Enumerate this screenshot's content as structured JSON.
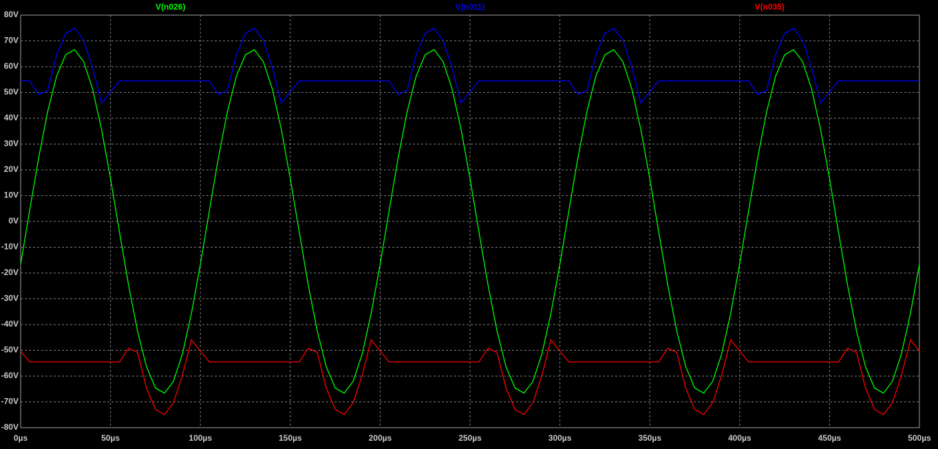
{
  "chart_data": {
    "type": "line",
    "x": [
      0,
      5,
      10,
      15,
      20,
      25,
      30,
      35,
      40,
      45,
      50,
      55,
      60,
      65,
      70,
      75,
      80,
      85,
      90,
      95,
      100,
      105,
      110,
      115,
      120,
      125,
      130,
      135,
      140,
      145,
      150,
      155,
      160,
      165,
      170,
      175,
      180,
      185,
      190,
      195,
      200,
      205,
      210,
      215,
      220,
      225,
      230,
      235,
      240,
      245,
      250,
      255,
      260,
      265,
      270,
      275,
      280,
      285,
      290,
      295,
      300,
      305,
      310,
      315,
      320,
      325,
      330,
      335,
      340,
      345,
      350,
      355,
      360,
      365,
      370,
      375,
      380,
      385,
      390,
      395,
      400,
      405,
      410,
      415,
      420,
      425,
      430,
      435,
      440,
      445,
      450,
      455,
      460,
      465,
      470,
      475,
      480,
      485,
      490,
      495,
      500
    ],
    "series": [
      {
        "name": "V(n026)",
        "color": "#00ff00",
        "values": [
          -16.6,
          4.2,
          24.6,
          42.5,
          56.3,
          64.6,
          66.6,
          62.0,
          51.4,
          35.7,
          16.6,
          -4.2,
          -24.6,
          -42.5,
          -56.3,
          -64.6,
          -66.6,
          -62.0,
          -51.4,
          -35.7,
          -16.6,
          4.2,
          24.6,
          42.5,
          56.3,
          64.6,
          66.6,
          62.0,
          51.4,
          35.7,
          16.6,
          -4.2,
          -24.6,
          -42.5,
          -56.3,
          -64.6,
          -66.6,
          -62.0,
          -51.4,
          -35.7,
          -16.6,
          4.2,
          24.6,
          42.5,
          56.3,
          64.6,
          66.6,
          62.0,
          51.4,
          35.7,
          16.6,
          -4.2,
          -24.6,
          -42.5,
          -56.3,
          -64.6,
          -66.6,
          -62.0,
          -51.4,
          -35.7,
          -16.6,
          4.2,
          24.6,
          42.5,
          56.3,
          64.6,
          66.6,
          62.0,
          51.4,
          35.7,
          16.6,
          -4.2,
          -24.6,
          -42.5,
          -56.3,
          -64.6,
          -66.6,
          -62.0,
          -51.4,
          -35.7,
          -16.6,
          4.2,
          24.6,
          42.5,
          56.3,
          64.6,
          66.6,
          62.0,
          51.4,
          35.7,
          16.6,
          -4.2,
          -24.6,
          -42.5,
          -56.3,
          -64.6,
          -66.6,
          -62.0,
          -51.4,
          -35.7,
          -16.6
        ]
      },
      {
        "name": "V(n011)",
        "color": "#0000ff",
        "values": [
          54.5,
          54.5,
          49.2,
          50.8,
          64.6,
          72.9,
          74.9,
          70.3,
          59.7,
          45.9,
          50.3,
          54.5,
          54.5,
          54.5,
          54.5,
          54.5,
          54.5,
          54.5,
          54.5,
          54.5,
          54.5,
          54.5,
          49.2,
          50.8,
          64.6,
          72.9,
          74.9,
          70.3,
          59.7,
          45.9,
          50.3,
          54.5,
          54.5,
          54.5,
          54.5,
          54.5,
          54.5,
          54.5,
          54.5,
          54.5,
          54.5,
          54.5,
          49.2,
          50.8,
          64.6,
          72.9,
          74.9,
          70.3,
          59.7,
          45.9,
          50.3,
          54.5,
          54.5,
          54.5,
          54.5,
          54.5,
          54.5,
          54.5,
          54.5,
          54.5,
          54.5,
          54.5,
          49.2,
          50.8,
          64.6,
          72.9,
          74.9,
          70.3,
          59.7,
          45.9,
          50.3,
          54.5,
          54.5,
          54.5,
          54.5,
          54.5,
          54.5,
          54.5,
          54.5,
          54.5,
          54.5,
          54.5,
          49.2,
          50.8,
          64.6,
          72.9,
          74.9,
          70.3,
          59.7,
          45.9,
          50.3,
          54.5,
          54.5,
          54.5,
          54.5,
          54.5,
          54.5,
          54.5,
          54.5,
          54.5,
          54.5
        ]
      },
      {
        "name": "V(n035)",
        "color": "#ff0000",
        "values": [
          -50.3,
          -54.5,
          -54.5,
          -54.5,
          -54.5,
          -54.5,
          -54.5,
          -54.5,
          -54.5,
          -54.5,
          -54.5,
          -54.5,
          -49.2,
          -50.8,
          -64.6,
          -72.9,
          -74.9,
          -70.3,
          -59.7,
          -45.9,
          -50.3,
          -54.5,
          -54.5,
          -54.5,
          -54.5,
          -54.5,
          -54.5,
          -54.5,
          -54.5,
          -54.5,
          -54.5,
          -54.5,
          -49.2,
          -50.8,
          -64.6,
          -72.9,
          -74.9,
          -70.3,
          -59.7,
          -45.9,
          -50.3,
          -54.5,
          -54.5,
          -54.5,
          -54.5,
          -54.5,
          -54.5,
          -54.5,
          -54.5,
          -54.5,
          -54.5,
          -54.5,
          -49.2,
          -50.8,
          -64.6,
          -72.9,
          -74.9,
          -70.3,
          -59.7,
          -45.9,
          -50.3,
          -54.5,
          -54.5,
          -54.5,
          -54.5,
          -54.5,
          -54.5,
          -54.5,
          -54.5,
          -54.5,
          -54.5,
          -54.5,
          -49.2,
          -50.8,
          -64.6,
          -72.9,
          -74.9,
          -70.3,
          -59.7,
          -45.9,
          -50.3,
          -54.5,
          -54.5,
          -54.5,
          -54.5,
          -54.5,
          -54.5,
          -54.5,
          -54.5,
          -54.5,
          -54.5,
          -54.5,
          -49.2,
          -50.8,
          -64.6,
          -72.9,
          -74.9,
          -70.3,
          -59.7,
          -45.9,
          -50.3
        ]
      }
    ],
    "xlim": [
      0,
      500
    ],
    "xticks": [
      {
        "value": 0,
        "label": "0µs"
      },
      {
        "value": 50,
        "label": "50µs"
      },
      {
        "value": 100,
        "label": "100µs"
      },
      {
        "value": 150,
        "label": "150µs"
      },
      {
        "value": 200,
        "label": "200µs"
      },
      {
        "value": 250,
        "label": "250µs"
      },
      {
        "value": 300,
        "label": "300µs"
      },
      {
        "value": 350,
        "label": "350µs"
      },
      {
        "value": 400,
        "label": "400µs"
      },
      {
        "value": 450,
        "label": "450µs"
      },
      {
        "value": 500,
        "label": "500µs"
      }
    ],
    "ylim": [
      -80,
      80
    ],
    "yticks": [
      {
        "value": 80,
        "label": "80V"
      },
      {
        "value": 70,
        "label": "70V"
      },
      {
        "value": 60,
        "label": "60V"
      },
      {
        "value": 50,
        "label": "50V"
      },
      {
        "value": 40,
        "label": "40V"
      },
      {
        "value": 30,
        "label": "30V"
      },
      {
        "value": 20,
        "label": "20V"
      },
      {
        "value": 10,
        "label": "10V"
      },
      {
        "value": 0,
        "label": "0V"
      },
      {
        "value": -10,
        "label": "-10V"
      },
      {
        "value": -20,
        "label": "-20V"
      },
      {
        "value": -30,
        "label": "-30V"
      },
      {
        "value": -40,
        "label": "-40V"
      },
      {
        "value": -50,
        "label": "-50V"
      },
      {
        "value": -60,
        "label": "-60V"
      },
      {
        "value": -70,
        "label": "-70V"
      },
      {
        "value": -80,
        "label": "-80V"
      }
    ],
    "grid": true
  }
}
